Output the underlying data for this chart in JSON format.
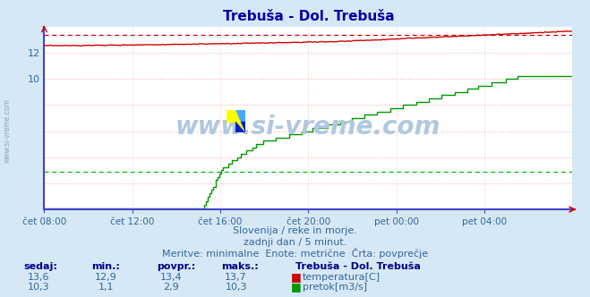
{
  "title": "Trebuša - Dol. Trebuša",
  "bg_color": "#d6e8f5",
  "plot_bg_color": "#ffffff",
  "grid_color": "#ffb0b0",
  "grid_v_color": "#ffcccc",
  "temp_color": "#cc0000",
  "flow_color": "#009900",
  "flow_avg_color": "#00bb00",
  "spine_left_color": "#4444cc",
  "spine_bottom_color": "#4444cc",
  "temp_avg": 13.4,
  "temp_min": 12.9,
  "temp_max": 13.7,
  "temp_current": 13.6,
  "flow_avg": 2.9,
  "flow_min": 1.1,
  "flow_max": 10.3,
  "flow_current": 10.3,
  "y_min": 0,
  "y_max": 14.0,
  "y_ticks": [
    10,
    12
  ],
  "x_labels": [
    "čet 08:00",
    "čet 12:00",
    "čet 16:00",
    "čet 20:00",
    "pet 00:00",
    "pet 04:00"
  ],
  "x_ticks_norm": [
    0.0,
    0.1667,
    0.3333,
    0.5,
    0.6667,
    0.8333
  ],
  "watermark": "www.si-vreme.com",
  "watermark_color": "#b0c8e0",
  "left_text": "www.si-vreme.com",
  "subtitle1": "Slovenija / reke in morje.",
  "subtitle2": "zadnji dan / 5 minut.",
  "subtitle3": "Meritve: minimalne  Enote: metrične  Črta: povprečje",
  "legend_title": "Trebuša - Dol. Trebuša",
  "label_temp": "temperatura[C]",
  "label_flow": "pretok[m3/s]",
  "table_headers": [
    "sedaj:",
    "min.:",
    "povpr.:",
    "maks.:"
  ],
  "table_temp": [
    "13,6",
    "12,9",
    "13,4",
    "13,7"
  ],
  "table_flow": [
    "10,3",
    "1,1",
    "2,9",
    "10,3"
  ],
  "title_color": "#0000aa",
  "label_color": "#336699",
  "header_color": "#000088",
  "figwidth": 6.59,
  "figheight": 3.32,
  "dpi": 100
}
